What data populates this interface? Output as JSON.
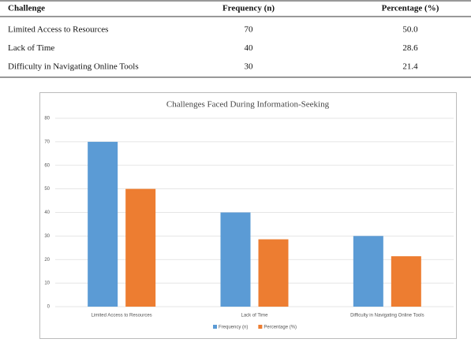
{
  "table": {
    "headers": [
      "Challenge",
      "Frequency (n)",
      "Percentage (%)"
    ],
    "rows": [
      [
        "Limited Access to Resources",
        "70",
        "50.0"
      ],
      [
        "Lack of Time",
        "40",
        "28.6"
      ],
      [
        "Difficulty in Navigating Online Tools",
        "30",
        "21.4"
      ]
    ]
  },
  "chart_data": {
    "type": "bar",
    "title": "Challenges Faced During Information-Seeking",
    "categories": [
      "Limited Access to Resources",
      "Lack of Time",
      "Difficulty in Navigating Online Tools"
    ],
    "series": [
      {
        "name": "Frequency (n)",
        "color": "#5b9bd5",
        "values": [
          70,
          40,
          30
        ]
      },
      {
        "name": "Percentage (%)",
        "color": "#ed7d31",
        "values": [
          50,
          28.6,
          21.4
        ]
      }
    ],
    "ylim": [
      0,
      80
    ],
    "yticks": [
      0,
      10,
      20,
      30,
      40,
      50,
      60,
      70,
      80
    ],
    "grid": true,
    "legend": "bottom"
  }
}
